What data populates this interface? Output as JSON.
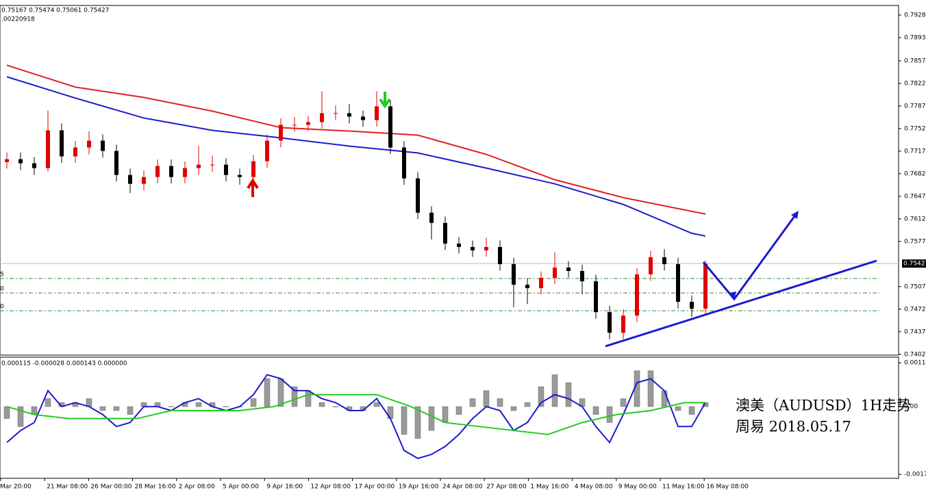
{
  "header": {
    "ohlc": "0.75167 0.75474 0.75061 0.75427",
    "line2": ".00220918"
  },
  "chart_data": [
    {
      "type": "candlestick",
      "ylim": [
        0.74007,
        0.79429
      ],
      "yticks": [
        {
          "value": 0.7928,
          "label": "0.79280"
        },
        {
          "value": 0.7893,
          "label": "0.78930"
        },
        {
          "value": 0.7857,
          "label": "0.78570"
        },
        {
          "value": 0.7822,
          "label": "0.78220"
        },
        {
          "value": 0.7787,
          "label": "0.77870"
        },
        {
          "value": 0.7752,
          "label": "0.77520"
        },
        {
          "value": 0.7717,
          "label": "0.77170"
        },
        {
          "value": 0.7682,
          "label": "0.76820"
        },
        {
          "value": 0.7647,
          "label": "0.76470"
        },
        {
          "value": 0.7612,
          "label": "0.76120"
        },
        {
          "value": 0.7577,
          "label": "0.75770"
        },
        {
          "value": 0.7507,
          "label": "0.75070"
        },
        {
          "value": 0.7472,
          "label": "0.74720"
        },
        {
          "value": 0.7437,
          "label": "0.74370"
        },
        {
          "value": 0.7402,
          "label": "0.74020"
        }
      ],
      "up_color": "#e00000",
      "down_color": "#000000",
      "open": [
        0.77,
        0.77046,
        0.76982,
        0.76908,
        0.77493,
        0.77089,
        0.77227,
        0.77333,
        0.77174,
        0.76801,
        0.76663,
        0.76769,
        0.7694,
        0.76769,
        0.76908,
        0.76961,
        0.76961,
        0.76801,
        0.76769,
        0.77014,
        0.77333,
        0.77578,
        0.77578,
        0.7762,
        0.77759,
        0.77759,
        0.77706,
        0.77652,
        0.77865,
        0.77227,
        0.76748,
        0.76216,
        0.76057,
        0.75737,
        0.75684,
        0.75631,
        0.75684,
        0.75418,
        0.75099,
        0.75046,
        0.75206,
        0.75365,
        0.75312,
        0.75152,
        0.74674,
        0.74354,
        0.7462,
        0.75259,
        0.75525,
        0.75418,
        0.74833,
        0.74727
      ],
      "high": [
        0.7715,
        0.7715,
        0.7708,
        0.778,
        0.776,
        0.7733,
        0.7748,
        0.7743,
        0.7727,
        0.769,
        0.7687,
        0.7704,
        0.7704,
        0.7701,
        0.7725,
        0.771,
        0.7706,
        0.769,
        0.7711,
        0.7743,
        0.7768,
        0.777,
        0.7772,
        0.781,
        0.7788,
        0.779,
        0.778,
        0.781,
        0.77965,
        0.77327,
        0.76848,
        0.76316,
        0.76157,
        0.75837,
        0.75784,
        0.7583,
        0.75784,
        0.75518,
        0.75199,
        0.75306,
        0.756,
        0.75465,
        0.75412,
        0.75252,
        0.74774,
        0.7472,
        0.75359,
        0.75625,
        0.7565,
        0.75518,
        0.74933,
        0.75474
      ],
      "low": [
        0.769,
        0.7688,
        0.768,
        0.7685,
        0.7699,
        0.7699,
        0.7712,
        0.7707,
        0.767,
        0.7652,
        0.7656,
        0.7667,
        0.7667,
        0.7667,
        0.768,
        0.7685,
        0.767,
        0.7665,
        0.7667,
        0.7691,
        0.7723,
        0.7747,
        0.7748,
        0.7752,
        0.7765,
        0.776,
        0.7755,
        0.7755,
        0.77127,
        0.76648,
        0.76116,
        0.758,
        0.75637,
        0.75584,
        0.75531,
        0.75531,
        0.75318,
        0.7475,
        0.748,
        0.74946,
        0.75106,
        0.75212,
        0.7495,
        0.74574,
        0.74254,
        0.74254,
        0.7452,
        0.75159,
        0.75318,
        0.74733,
        0.746,
        0.74627
      ],
      "close": [
        0.77046,
        0.76982,
        0.76908,
        0.77493,
        0.77089,
        0.77227,
        0.77333,
        0.77174,
        0.76801,
        0.76663,
        0.76769,
        0.7694,
        0.76769,
        0.76908,
        0.76961,
        0.76961,
        0.76801,
        0.76769,
        0.77014,
        0.77333,
        0.77578,
        0.77578,
        0.7762,
        0.77759,
        0.77759,
        0.77706,
        0.77652,
        0.77865,
        0.77227,
        0.76748,
        0.76216,
        0.76057,
        0.75737,
        0.75684,
        0.75631,
        0.75684,
        0.75418,
        0.75099,
        0.75046,
        0.75206,
        0.75365,
        0.75312,
        0.75152,
        0.74674,
        0.74354,
        0.7462,
        0.75259,
        0.75525,
        0.75418,
        0.74833,
        0.74727,
        0.75427
      ],
      "moving_averages": [
        {
          "color": "#e02020",
          "x": [
            0,
            5,
            10,
            15,
            20,
            25,
            30,
            35,
            40,
            45,
            50,
            51
          ],
          "values": [
            0.78503,
            0.78163,
            0.78003,
            0.77791,
            0.77535,
            0.77482,
            0.77418,
            0.7712,
            0.76727,
            0.7645,
            0.76237,
            0.76195
          ]
        },
        {
          "color": "#1a1ad0",
          "x": [
            0,
            5,
            10,
            15,
            20,
            25,
            30,
            35,
            40,
            45,
            50,
            51
          ],
          "values": [
            0.78323,
            0.77993,
            0.77684,
            0.77493,
            0.77376,
            0.77248,
            0.77142,
            0.76908,
            0.76663,
            0.76344,
            0.75897,
            0.75854
          ]
        }
      ],
      "levels": [
        {
          "value": 0.75195,
          "label": "5"
        },
        {
          "value": 0.74971,
          "label": "0"
        },
        {
          "value": 0.74695,
          "label": "0"
        }
      ],
      "level_color": "#2e8b2e",
      "current_price": 0.75427
    },
    {
      "type": "macd",
      "header": "0.000115 -0.000028 0.000143 0.000000",
      "ylim": [
        -0.0018,
        0.00124
      ],
      "yticks": [
        {
          "value": 0.0011,
          "label": "0.00110"
        },
        {
          "value": 0,
          "label": "0.00"
        },
        {
          "value": -0.0017,
          "label": "-0.00170"
        }
      ],
      "histogram": {
        "color": "#9a9a9a",
        "values": [
          -0.0003,
          -0.0005,
          -0.0002,
          0.0002,
          0.0001,
          0.0001,
          0.0002,
          -0.0001,
          -0.0001,
          -0.0002,
          0.0001,
          0.0001,
          0,
          0.0001,
          0.0001,
          0.0001,
          0,
          0,
          0.0002,
          0.0007,
          0.0007,
          0.0005,
          0.0004,
          0.0001,
          0,
          -0.0001,
          -0.0001,
          0.0001,
          -0.0003,
          -0.0007,
          -0.0008,
          -0.0006,
          -0.0004,
          -0.0002,
          0.0002,
          0.0004,
          0.0002,
          -0.0001,
          0.0001,
          0.0005,
          0.0008,
          0.0006,
          0.0002,
          -0.0002,
          -0.0004,
          0.0002,
          0.0009,
          0.0009,
          0.0004,
          -0.0001,
          -0.0002,
          0.0001
        ]
      },
      "lines": [
        {
          "color": "#1a1ad0",
          "values": [
            -0.0009,
            -0.0006,
            -0.0004,
            0.0004,
            0,
            0.0001,
            0,
            -0.0002,
            -0.0005,
            -0.0004,
            0,
            0,
            -0.0001,
            0.0001,
            0.0002,
            0,
            -0.0001,
            0,
            0.0003,
            0.0008,
            0.0007,
            0.0004,
            0.0004,
            0.0002,
            0.0001,
            -0.0001,
            -0.0001,
            0.0002,
            -0.0003,
            -0.0011,
            -0.0013,
            -0.0012,
            -0.001,
            -0.0007,
            -0.0003,
            0,
            -0.0001,
            -0.0006,
            -0.0004,
            0.0001,
            0.0003,
            0.0002,
            0,
            -0.0005,
            -0.0009,
            -0.0002,
            0.0006,
            0.0007,
            0.0004,
            -0.0005,
            -0.0005,
            0.0001
          ]
        },
        {
          "color": "#22cc22",
          "x": [
            0,
            2,
            4.5,
            7,
            9.5,
            12,
            14.5,
            17,
            19.5,
            22,
            24.5,
            27,
            29.5,
            32,
            34.5,
            37,
            39.5,
            42,
            44.5,
            47,
            49.5,
            51
          ],
          "values": [
            0,
            -0.0002,
            -0.0003,
            -0.0003,
            -0.0003,
            -0.0001,
            -0.0001,
            -0.0001,
            0,
            0.0003,
            0.0003,
            0.0003,
            0,
            -0.0004,
            -0.0005,
            -0.0006,
            -0.0007,
            -0.0004,
            -0.0002,
            -0.0001,
            0.0001,
            0.0001
          ]
        }
      ]
    }
  ],
  "x_labels": [
    "Mar 20:00",
    "21 Mar 08:00",
    "26 Mar 00:00",
    "28 Mar 16:00",
    "2 Apr 08:00",
    "5 Apr 00:00",
    "9 Apr 16:00",
    "12 Apr 08:00",
    "17 Apr 00:00",
    "19 Apr 16:00",
    "24 Apr 08:00",
    "27 Apr 08:00",
    "1 May 16:00",
    "4 May 08:00",
    "9 May 00:00",
    "11 May 16:00",
    "16 May 08:00"
  ],
  "annotation": [
    "澳美（AUDUSD）1H走势",
    "周易 2018.05.17"
  ]
}
